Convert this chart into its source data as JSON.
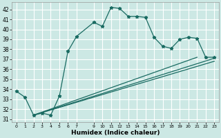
{
  "xlabel": "Humidex (Indice chaleur)",
  "bg_color": "#cce8e4",
  "grid_color": "#ffffff",
  "line_color": "#1a6b62",
  "xlim": [
    -0.5,
    23.5
  ],
  "ylim": [
    30.7,
    42.7
  ],
  "yticks": [
    31,
    32,
    33,
    34,
    35,
    36,
    37,
    38,
    39,
    40,
    41,
    42
  ],
  "xtick_vals": [
    0,
    1,
    2,
    3,
    4,
    5,
    6,
    7,
    9,
    10,
    11,
    12,
    13,
    14,
    15,
    16,
    17,
    18,
    19,
    20,
    21,
    22,
    23
  ],
  "xtick_labels": [
    "0",
    "1",
    "2",
    "3",
    "4",
    "5",
    "6",
    "7",
    "9",
    "10",
    "11",
    "12",
    "13",
    "14",
    "15",
    "16",
    "17",
    "18",
    "19",
    "20",
    "21",
    "22",
    "23"
  ],
  "series1_x": [
    0,
    1,
    2,
    3,
    4,
    5,
    6,
    7,
    9,
    10,
    11,
    12,
    13,
    14,
    15,
    16,
    17,
    18,
    19,
    20,
    21,
    22,
    23
  ],
  "series1_y": [
    33.8,
    33.2,
    31.4,
    31.6,
    31.4,
    33.3,
    37.8,
    39.3,
    40.7,
    40.3,
    42.2,
    42.1,
    41.3,
    41.3,
    41.2,
    39.2,
    38.3,
    38.1,
    39.0,
    39.2,
    39.1,
    37.2,
    37.2
  ],
  "line2_x": [
    2,
    21
  ],
  "line2_y": [
    31.4,
    37.2
  ],
  "line3_x": [
    2,
    23
  ],
  "line3_y": [
    31.4,
    37.1
  ],
  "line4_x": [
    2,
    23
  ],
  "line4_y": [
    31.4,
    36.8
  ]
}
